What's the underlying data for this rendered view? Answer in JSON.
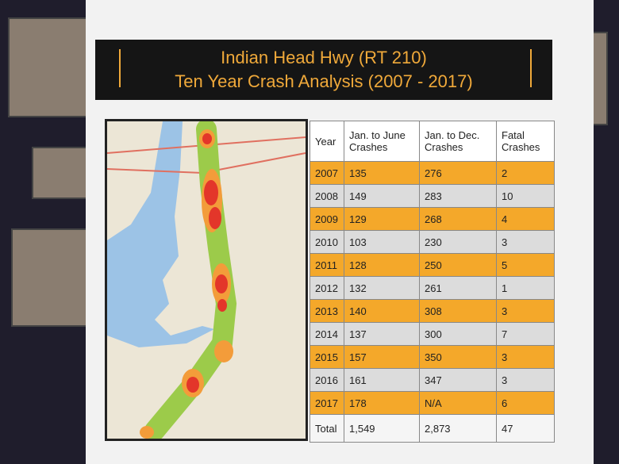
{
  "header": {
    "title_line1": "Indian Head Hwy (RT 210)",
    "title_line2": "Ten Year Crash Analysis (2007 - 2017)"
  },
  "table": {
    "header": [
      "Year",
      "Jan. to June Crashes",
      "Jan. to Dec. Crashes",
      "Fatal Crashes"
    ],
    "rows": [
      [
        "2007",
        "135",
        "276",
        "2"
      ],
      [
        "2008",
        "149",
        "283",
        "10"
      ],
      [
        "2009",
        "129",
        "268",
        "4"
      ],
      [
        "2010",
        "103",
        "230",
        "3"
      ],
      [
        "2011",
        "128",
        "250",
        "5"
      ],
      [
        "2012",
        "132",
        "261",
        "1"
      ],
      [
        "2013",
        "140",
        "308",
        "3"
      ],
      [
        "2014",
        "137",
        "300",
        "7"
      ],
      [
        "2015",
        "157",
        "350",
        "3"
      ],
      [
        "2016",
        "161",
        "347",
        "3"
      ],
      [
        "2017",
        "178",
        "N/A",
        "6"
      ],
      [
        "Total",
        "1,549",
        "2,873",
        "47"
      ]
    ]
  }
}
